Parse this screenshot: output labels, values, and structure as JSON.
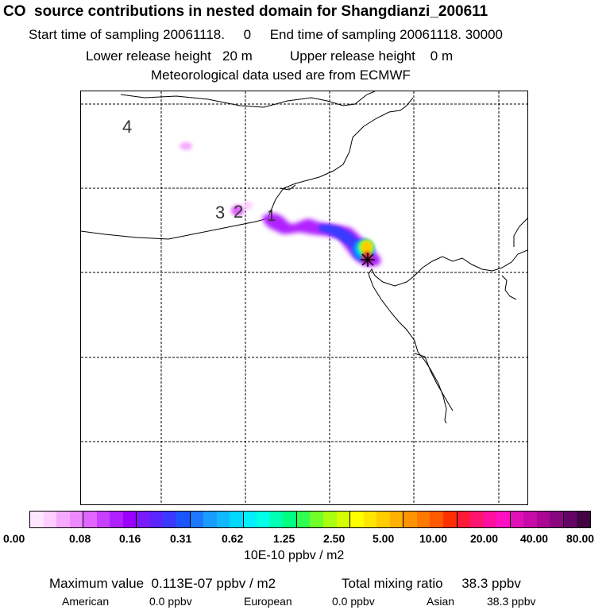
{
  "header": {
    "title": "CO  source contributions in nested domain for Shangdianzi_200611",
    "start_label": "Start time of sampling 20061118.",
    "start_value": "0",
    "end_label": "End time of sampling 20061118. 30000",
    "lower_label": "Lower release height",
    "lower_value": "20 m",
    "upper_label": "Upper release height",
    "upper_value": "0 m",
    "met_line": "Meteorological data used are from ECMWF"
  },
  "map": {
    "region_labels": [
      "4",
      "3",
      "2",
      "1"
    ],
    "receptor_marker": "star"
  },
  "colorbar": {
    "tick_labels": [
      "0.00",
      "0.08",
      "0.16",
      "0.31",
      "0.62",
      "1.25",
      "2.50",
      "5.00",
      "10.00",
      "20.00",
      "40.00",
      "80.00"
    ],
    "colors": [
      "#ffe6ff",
      "#ffcdff",
      "#f5aaff",
      "#ee88ff",
      "#e066ff",
      "#c840ff",
      "#b020ff",
      "#9b00ff",
      "#7a1bff",
      "#5c24ff",
      "#3a3aff",
      "#1a55ff",
      "#1e78ff",
      "#1a9cff",
      "#10b8ff",
      "#00d8ff",
      "#00f0ff",
      "#00ffe6",
      "#00ffb4",
      "#00ff80",
      "#30ff50",
      "#70ff28",
      "#aaff10",
      "#d4ff00",
      "#ffff00",
      "#ffe600",
      "#ffcc00",
      "#ffb000",
      "#ff9400",
      "#ff7800",
      "#ff5a00",
      "#ff3000",
      "#ff1a38",
      "#ff1470",
      "#ff10a0",
      "#ff10c0",
      "#e010b8",
      "#c80aa8",
      "#aa0894",
      "#880680",
      "#660466",
      "#440444"
    ],
    "units": "10E-10 ppbv / m2"
  },
  "summary": {
    "max_label": "Maximum value",
    "max_value": "0.113E-07 ppbv / m2",
    "total_label": "Total mixing ratio",
    "total_value": "38.3 ppbv",
    "american_label": "American",
    "american_value": "0.0 ppbv",
    "european_label": "European",
    "european_value": "0.0 ppbv",
    "asian_label": "Asian",
    "asian_value": "38.3 ppbv"
  }
}
